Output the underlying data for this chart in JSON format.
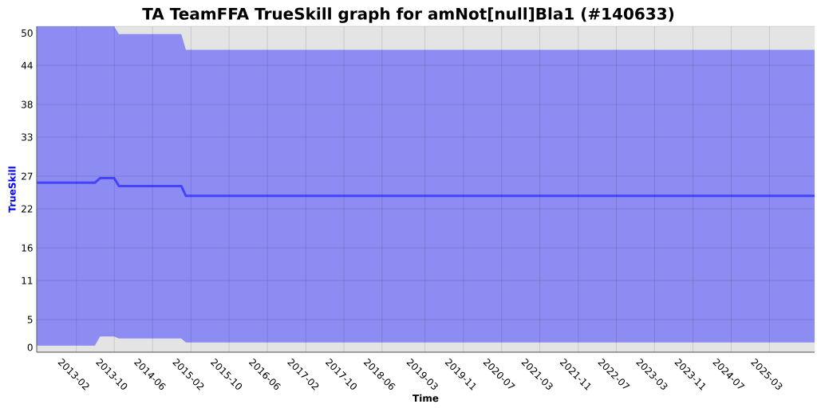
{
  "chart_data": {
    "type": "line",
    "title": "TA TeamFFA TrueSkill graph for amNot[null]Bla1 (#140633)",
    "xlabel": "Time",
    "ylabel": "TrueSkill",
    "x": [
      "2012-05-25",
      "2013-05-30",
      "2013-07-02",
      "2013-09-30",
      "2013-10-30",
      "2014-12-01",
      "2014-12-30",
      "2025-12-14"
    ],
    "series": [
      {
        "color": "#4444ff",
        "values": [
          26.0,
          26.0,
          26.7,
          26.7,
          25.5,
          25.5,
          24.0,
          24.0
        ],
        "lower": [
          1.0,
          1.0,
          2.4,
          2.4,
          2.1,
          2.1,
          1.5,
          1.5
        ],
        "upper": [
          50,
          50,
          50,
          50,
          48.8,
          48.8,
          46.4,
          46.4
        ]
      }
    ],
    "xlim": [
      "2012-05-25",
      "2025-12-14"
    ],
    "ylim": [
      0,
      50
    ],
    "xticks": [
      "2013-02",
      "2013-10",
      "2014-06",
      "2015-02",
      "2015-10",
      "2016-06",
      "2017-02",
      "2017-10",
      "2018-06",
      "2019-03",
      "2019-11",
      "2020-07",
      "2021-03",
      "2021-11",
      "2022-07",
      "2023-03",
      "2023-11",
      "2024-07",
      "2025-03"
    ],
    "yticks": [
      0,
      5,
      11,
      16,
      22,
      27,
      33,
      38,
      44,
      50
    ],
    "grid": true
  }
}
